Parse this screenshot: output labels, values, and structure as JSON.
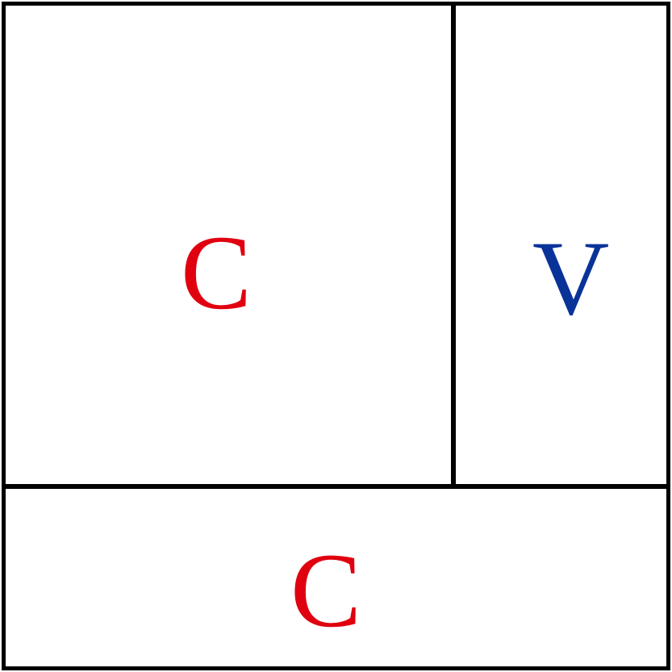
{
  "cells": {
    "top_left": {
      "label": "C",
      "color": "#e0000f"
    },
    "top_right": {
      "label": "V",
      "color": "#0a3399"
    },
    "bottom": {
      "label": "C",
      "color": "#e0000f"
    }
  },
  "line_color": "#000000"
}
